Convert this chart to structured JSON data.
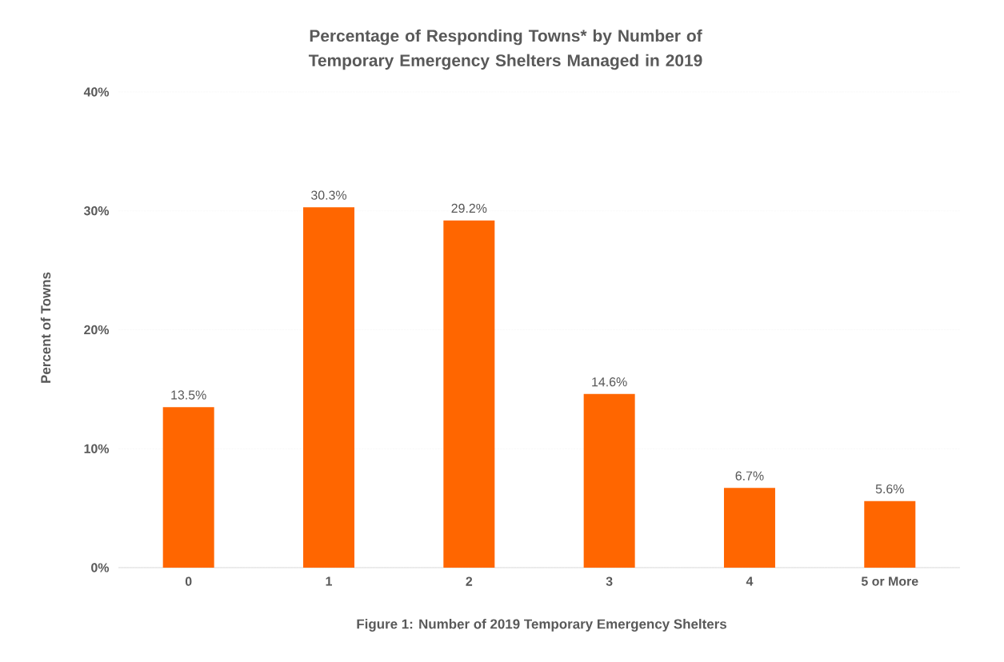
{
  "chart_data": {
    "type": "bar",
    "title": "Percentage of Responding Towns* by Number of Temporary Emergency Shelters Managed in 2019",
    "xlabel": "Figure 1: Number of 2019 Temporary Emergency Shelters",
    "ylabel": "Percent of Towns",
    "categories": [
      "0",
      "1",
      "2",
      "3",
      "4",
      "5 or More"
    ],
    "values": [
      13.5,
      30.3,
      29.2,
      14.6,
      6.7,
      5.6
    ],
    "value_labels": [
      "13.5%",
      "30.3%",
      "29.2%",
      "14.6%",
      "6.7%",
      "5.6%"
    ],
    "color": "#ff6600",
    "ylim": [
      0,
      40
    ],
    "yticks": [
      {
        "value": 0,
        "label": "0%"
      },
      {
        "value": 10,
        "label": "10%"
      },
      {
        "value": 20,
        "label": "20%"
      },
      {
        "value": 30,
        "label": "30%"
      },
      {
        "value": 40,
        "label": "40%"
      }
    ],
    "grid": "y"
  }
}
